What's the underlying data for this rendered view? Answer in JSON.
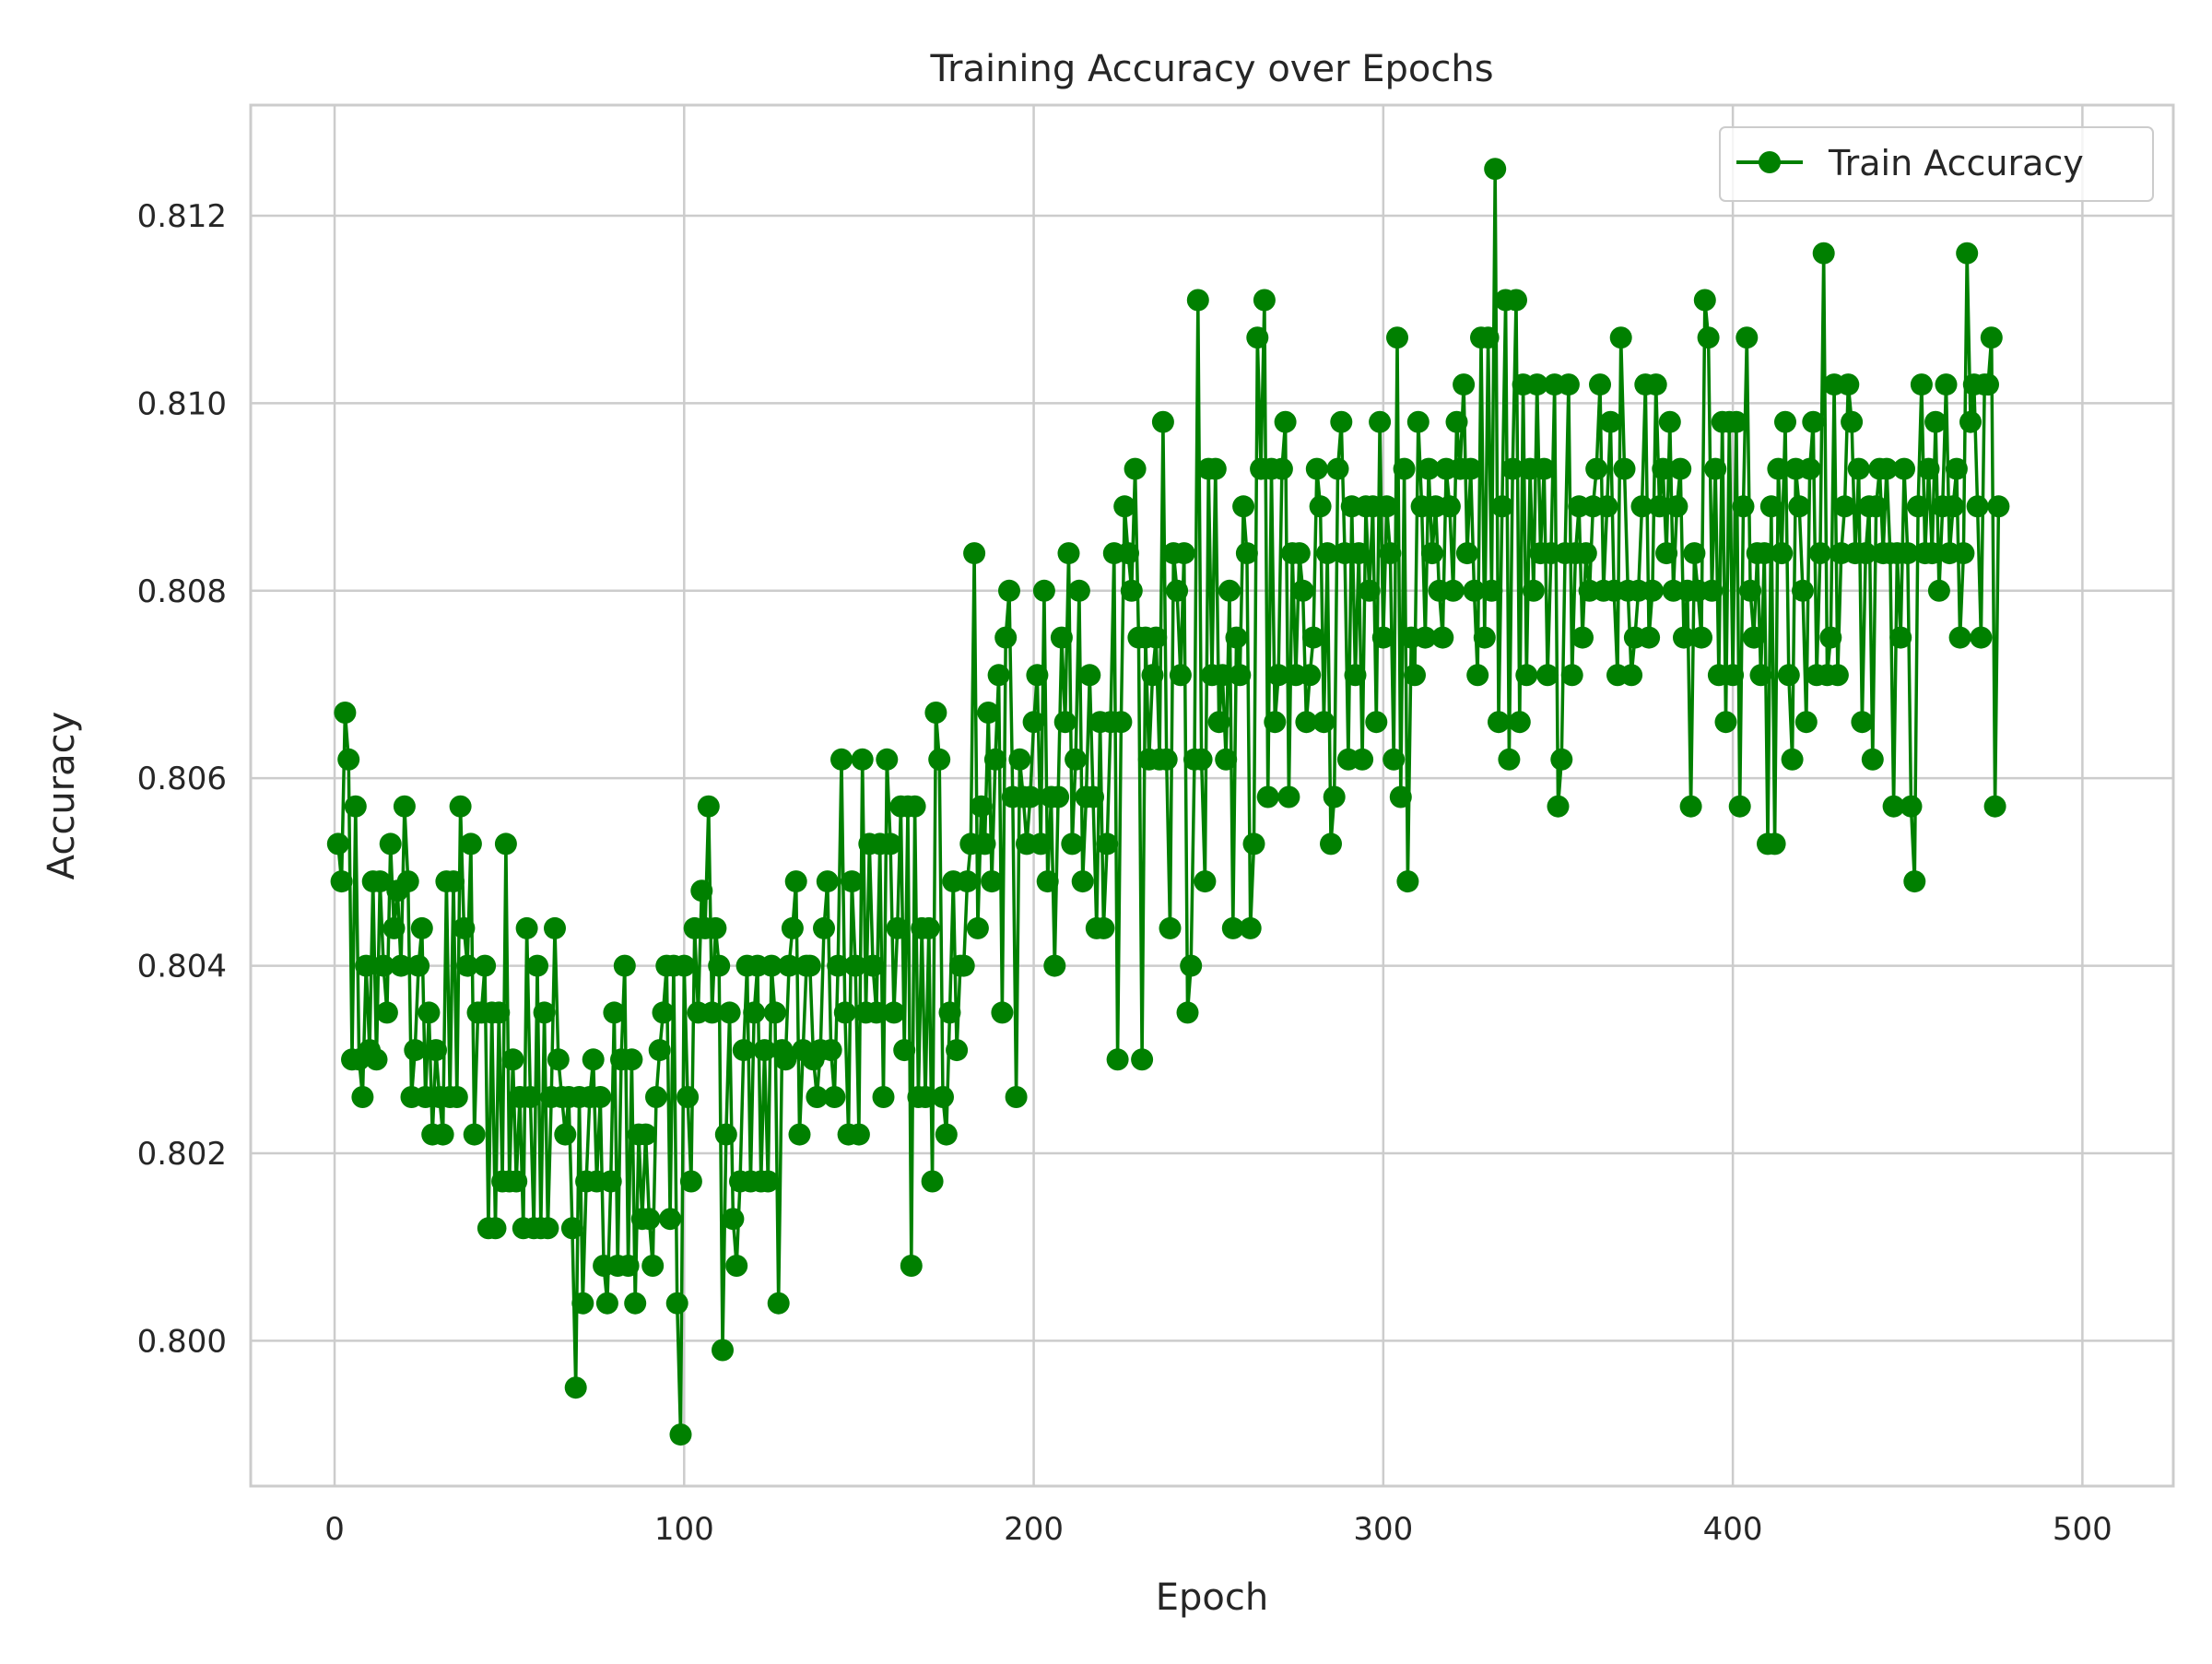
{
  "chart_data": {
    "type": "line",
    "title": "Training Accuracy over Epochs",
    "xlabel": "Epoch",
    "ylabel": "Accuracy",
    "xlim": [
      -24,
      526
    ],
    "ylim": [
      0.79845,
      0.81318
    ],
    "xticks": [
      0,
      100,
      200,
      300,
      400,
      500
    ],
    "xtick_labels": [
      "0",
      "100",
      "200",
      "300",
      "400",
      "500"
    ],
    "yticks": [
      0.8,
      0.802,
      0.804,
      0.806,
      0.808,
      0.81,
      0.812
    ],
    "ytick_labels": [
      "0.800",
      "0.802",
      "0.804",
      "0.806",
      "0.808",
      "0.810",
      "0.812"
    ],
    "grid": true,
    "legend_position": "top-right",
    "series": [
      {
        "name": "Train Accuracy",
        "color": "#008000",
        "marker": "circle",
        "x_start": 1,
        "x_step": 1,
        "values": [
          0.8053,
          0.8049,
          0.8067,
          0.8062,
          0.803,
          0.8057,
          0.803,
          0.8026,
          0.804,
          0.8031,
          0.8049,
          0.803,
          0.8049,
          0.804,
          0.8035,
          0.8053,
          0.8044,
          0.8048,
          0.804,
          0.8057,
          0.8049,
          0.8026,
          0.8031,
          0.804,
          0.8044,
          0.8026,
          0.8035,
          0.8022,
          0.8031,
          0.8026,
          0.8022,
          0.8049,
          0.8026,
          0.8049,
          0.8026,
          0.8057,
          0.8044,
          0.804,
          0.8053,
          0.8022,
          0.8035,
          0.8035,
          0.804,
          0.8012,
          0.8035,
          0.8012,
          0.8035,
          0.8017,
          0.8053,
          0.8017,
          0.803,
          0.8017,
          0.8026,
          0.8012,
          0.8044,
          0.8026,
          0.8012,
          0.804,
          0.8012,
          0.8035,
          0.8012,
          0.8026,
          0.8044,
          0.803,
          0.8026,
          0.8022,
          0.8026,
          0.8012,
          0.7995,
          0.8026,
          0.8004,
          0.8017,
          0.8026,
          0.803,
          0.8017,
          0.8026,
          0.8008,
          0.8004,
          0.8017,
          0.8035,
          0.8008,
          0.803,
          0.804,
          0.8008,
          0.803,
          0.8004,
          0.8022,
          0.8013,
          0.8022,
          0.8013,
          0.8008,
          0.8026,
          0.8031,
          0.8035,
          0.804,
          0.8013,
          0.804,
          0.8004,
          0.799,
          0.804,
          0.8026,
          0.8017,
          0.8044,
          0.8035,
          0.8048,
          0.8044,
          0.8057,
          0.8035,
          0.8044,
          0.804,
          0.7999,
          0.8022,
          0.8035,
          0.8013,
          0.8008,
          0.8017,
          0.8031,
          0.804,
          0.8017,
          0.8035,
          0.804,
          0.8017,
          0.8031,
          0.8017,
          0.804,
          0.8035,
          0.8004,
          0.8031,
          0.803,
          0.804,
          0.8044,
          0.8049,
          0.8022,
          0.8031,
          0.804,
          0.804,
          0.803,
          0.8026,
          0.8031,
          0.8044,
          0.8049,
          0.8031,
          0.8026,
          0.804,
          0.8062,
          0.8035,
          0.8022,
          0.8049,
          0.804,
          0.8022,
          0.8062,
          0.8035,
          0.8053,
          0.804,
          0.8035,
          0.8053,
          0.8026,
          0.8062,
          0.8053,
          0.8035,
          0.8044,
          0.8057,
          0.8031,
          0.8057,
          0.8008,
          0.8057,
          0.8026,
          0.8044,
          0.8026,
          0.8044,
          0.8017,
          0.8067,
          0.8062,
          0.8026,
          0.8022,
          0.8035,
          0.8049,
          0.8031,
          0.804,
          0.804,
          0.8049,
          0.8053,
          0.8084,
          0.8044,
          0.8057,
          0.8053,
          0.8067,
          0.8049,
          0.8062,
          0.8071,
          0.8035,
          0.8075,
          0.808,
          0.8058,
          0.8026,
          0.8062,
          0.8058,
          0.8053,
          0.8058,
          0.8066,
          0.8071,
          0.8053,
          0.808,
          0.8049,
          0.8058,
          0.804,
          0.8058,
          0.8075,
          0.8066,
          0.8084,
          0.8053,
          0.8062,
          0.808,
          0.8049,
          0.8058,
          0.8071,
          0.8058,
          0.8044,
          0.8066,
          0.8044,
          0.8053,
          0.8066,
          0.8084,
          0.803,
          0.8066,
          0.8089,
          0.8084,
          0.808,
          0.8093,
          0.8075,
          0.803,
          0.8075,
          0.8062,
          0.8071,
          0.8075,
          0.8062,
          0.8098,
          0.8062,
          0.8044,
          0.8084,
          0.808,
          0.8071,
          0.8084,
          0.8035,
          0.804,
          0.8062,
          0.8111,
          0.8062,
          0.8049,
          0.8093,
          0.8071,
          0.8093,
          0.8066,
          0.8071,
          0.8062,
          0.808,
          0.8044,
          0.8075,
          0.8071,
          0.8089,
          0.8084,
          0.8044,
          0.8053,
          0.8107,
          0.8093,
          0.8111,
          0.8058,
          0.8093,
          0.8066,
          0.8071,
          0.8093,
          0.8098,
          0.8058,
          0.8084,
          0.8071,
          0.8084,
          0.808,
          0.8066,
          0.8071,
          0.8075,
          0.8093,
          0.8089,
          0.8066,
          0.8084,
          0.8053,
          0.8058,
          0.8093,
          0.8098,
          0.8084,
          0.8062,
          0.8089,
          0.8071,
          0.8084,
          0.8062,
          0.8089,
          0.808,
          0.8089,
          0.8066,
          0.8098,
          0.8075,
          0.8089,
          0.8084,
          0.8062,
          0.8107,
          0.8058,
          0.8093,
          0.8049,
          0.8075,
          0.8071,
          0.8098,
          0.8089,
          0.8075,
          0.8093,
          0.8084,
          0.8089,
          0.808,
          0.8075,
          0.8093,
          0.8089,
          0.808,
          0.8098,
          0.8093,
          0.8102,
          0.8084,
          0.8093,
          0.808,
          0.8071,
          0.8107,
          0.8075,
          0.8107,
          0.808,
          0.8125,
          0.8066,
          0.8089,
          0.8111,
          0.8062,
          0.8093,
          0.8111,
          0.8066,
          0.8102,
          0.8071,
          0.8093,
          0.808,
          0.8102,
          0.8084,
          0.8093,
          0.8071,
          0.8084,
          0.8102,
          0.8057,
          0.8062,
          0.8084,
          0.8102,
          0.8071,
          0.8084,
          0.8089,
          0.8075,
          0.8084,
          0.808,
          0.8089,
          0.8093,
          0.8102,
          0.808,
          0.8089,
          0.8098,
          0.808,
          0.8071,
          0.8107,
          0.8093,
          0.808,
          0.8071,
          0.8075,
          0.808,
          0.8089,
          0.8102,
          0.8075,
          0.808,
          0.8102,
          0.8089,
          0.8093,
          0.8084,
          0.8098,
          0.808,
          0.8089,
          0.8093,
          0.8075,
          0.808,
          0.8057,
          0.8084,
          0.808,
          0.8075,
          0.8111,
          0.8107,
          0.808,
          0.8093,
          0.8071,
          0.8098,
          0.8066,
          0.8098,
          0.8071,
          0.8098,
          0.8057,
          0.8089,
          0.8107,
          0.808,
          0.8075,
          0.8084,
          0.8071,
          0.8084,
          0.8053,
          0.8089,
          0.8053,
          0.8093,
          0.8084,
          0.8098,
          0.8071,
          0.8062,
          0.8093,
          0.8089,
          0.808,
          0.8066,
          0.8093,
          0.8098,
          0.8071,
          0.8084,
          0.8116,
          0.8071,
          0.8075,
          0.8102,
          0.8071,
          0.8084,
          0.8089,
          0.8102,
          0.8098,
          0.8084,
          0.8093,
          0.8066,
          0.8084,
          0.8089,
          0.8062,
          0.8089,
          0.8093,
          0.8084,
          0.8093,
          0.8084,
          0.8057,
          0.8084,
          0.8075,
          0.8093,
          0.8084,
          0.8057,
          0.8049,
          0.8089,
          0.8102,
          0.8084,
          0.8093,
          0.8084,
          0.8098,
          0.808,
          0.8089,
          0.8102,
          0.8084,
          0.8089,
          0.8093,
          0.8075,
          0.8084,
          0.8116,
          0.8098,
          0.8102,
          0.8089,
          0.8075,
          0.8102,
          0.8102,
          0.8107,
          0.8057,
          0.8089
        ]
      }
    ]
  }
}
